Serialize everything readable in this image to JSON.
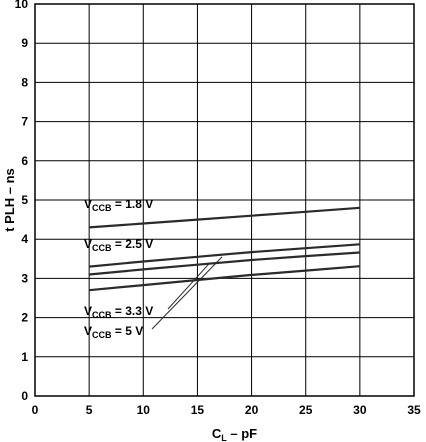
{
  "chart_data": {
    "type": "line",
    "title": "",
    "xlabel": {
      "main": "C",
      "sub": "L",
      "suffix": " – pF"
    },
    "ylabel": "t PLH – ns",
    "xlim": [
      0,
      35
    ],
    "ylim": [
      0,
      10
    ],
    "x_ticks": [
      "0",
      "5",
      "10",
      "15",
      "20",
      "25",
      "30",
      "35"
    ],
    "y_ticks": [
      "0",
      "1",
      "2",
      "3",
      "4",
      "5",
      "6",
      "7",
      "8",
      "9",
      "10"
    ],
    "grid": true,
    "series": [
      {
        "name": "V_CCB = 1.8 V",
        "label_main": "V",
        "label_sub": "CCB",
        "label_rest": " = 1.8 V",
        "x": [
          5,
          10,
          15,
          20,
          25,
          30
        ],
        "y": [
          4.3,
          4.4,
          4.5,
          4.6,
          4.7,
          4.8
        ]
      },
      {
        "name": "V_CCB = 2.5 V",
        "label_main": "V",
        "label_sub": "CCB",
        "label_rest": " = 2.5 V",
        "x": [
          5,
          10,
          15,
          20,
          25,
          30
        ],
        "y": [
          3.3,
          3.43,
          3.55,
          3.67,
          3.77,
          3.87
        ]
      },
      {
        "name": "V_CCB = 3.3 V",
        "label_main": "V",
        "label_sub": "CCB",
        "label_rest": " = 3.3 V",
        "x": [
          5,
          10,
          15,
          20,
          25,
          30
        ],
        "y": [
          3.1,
          3.23,
          3.35,
          3.47,
          3.57,
          3.66
        ]
      },
      {
        "name": "V_CCB = 5 V",
        "label_main": "V",
        "label_sub": "CCB",
        "label_rest": " = 5 V",
        "x": [
          5,
          10,
          15,
          20,
          25,
          30
        ],
        "y": [
          2.7,
          2.83,
          2.96,
          3.09,
          3.2,
          3.31
        ]
      }
    ],
    "colors": {
      "line": "#2b2b2b",
      "grid": "#000000",
      "text": "#000000"
    }
  }
}
